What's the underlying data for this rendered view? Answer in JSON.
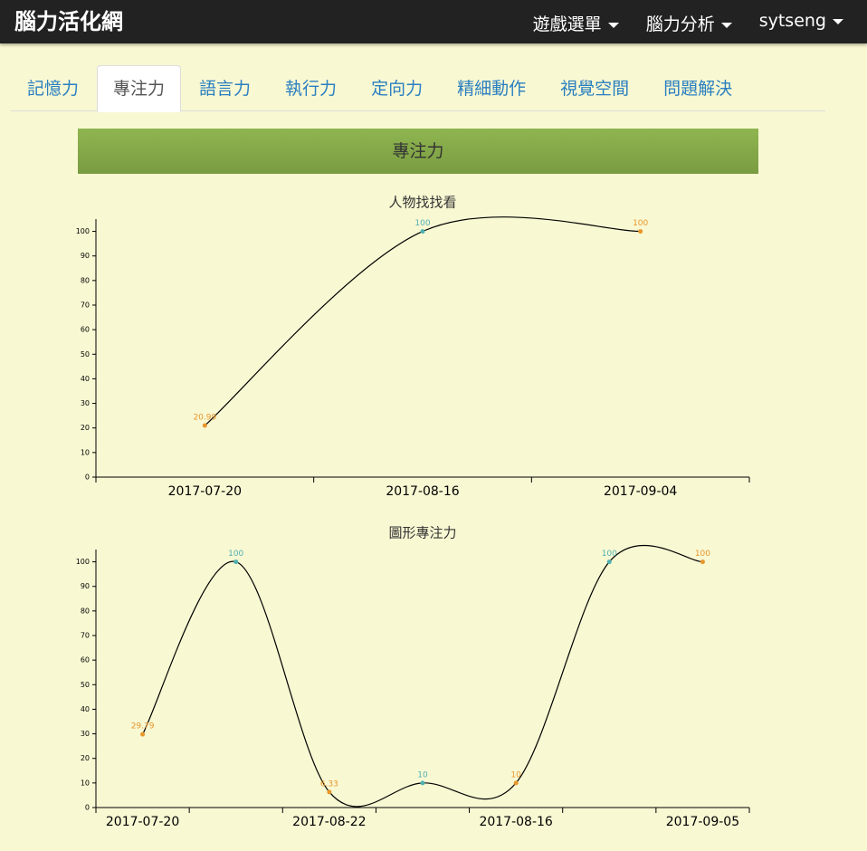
{
  "navbar": {
    "brand": "腦力活化網",
    "menus": [
      "遊戲選單",
      "腦力分析",
      "sytseng"
    ]
  },
  "tabs": {
    "items": [
      "記憶力",
      "專注力",
      "語言力",
      "執行力",
      "定向力",
      "精細動作",
      "視覺空間",
      "問題解決"
    ],
    "active": 1
  },
  "section_title": "專注力",
  "chart_data": [
    {
      "type": "line",
      "title": "人物找找看",
      "categories": [
        "2017-07-20",
        "2017-08-16",
        "2017-09-04"
      ],
      "values": [
        20.99,
        100,
        100
      ],
      "color": "#000000",
      "point_colors": [
        "#e8962a",
        "#4fb0b0",
        "#e8962a"
      ],
      "ylim": [
        0,
        105
      ],
      "yticks": [
        0,
        10,
        20,
        30,
        40,
        50,
        60,
        70,
        80,
        90,
        100
      ]
    },
    {
      "type": "line",
      "title": "圖形專注力",
      "categories": [
        "2017-07-20",
        null,
        "2017-08-22",
        null,
        "2017-08-16",
        null,
        "2017-09-05"
      ],
      "values": [
        29.79,
        100,
        6.33,
        10,
        10,
        100,
        100
      ],
      "color": "#000000",
      "point_colors": [
        "#e8962a",
        "#4fb0b0",
        "#e8962a",
        "#4fb0b0",
        "#e8962a",
        "#4fb0b0",
        "#e8962a"
      ],
      "ylim": [
        0,
        105
      ],
      "yticks": [
        0,
        10,
        20,
        30,
        40,
        50,
        60,
        70,
        80,
        90,
        100
      ]
    }
  ]
}
